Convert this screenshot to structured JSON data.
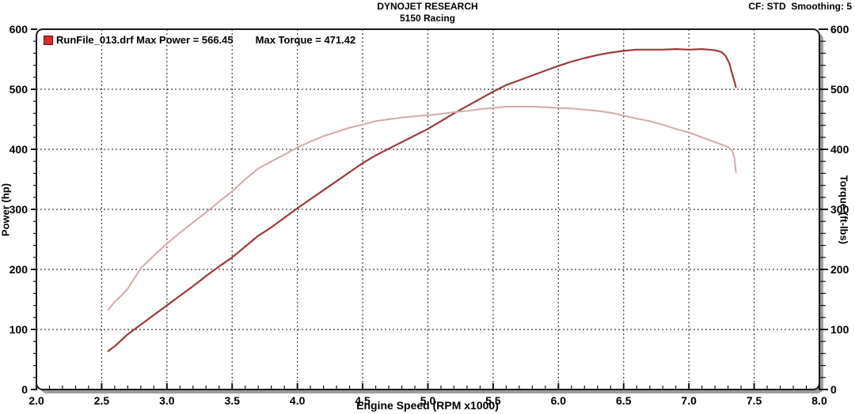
{
  "header": {
    "title": "DYNOJET RESEARCH",
    "subtitle": "5150 Racing",
    "settings": "CF: STD  Smoothing: 5"
  },
  "legend": {
    "run_label": "RunFile_013.drf Max Power = 566.45",
    "torque_label": "Max Torque = 471.42",
    "swatch_color": "#d52b2b"
  },
  "colors": {
    "power_curve": "#9c3a3a",
    "torque_curve": "#d5a9a9",
    "grid": "#3c3c3c",
    "frame": "#1a1a1a",
    "frame_shadow": "#9c9c9c"
  },
  "chart_data": {
    "type": "line",
    "title": "DYNOJET RESEARCH - 5150 Racing",
    "xlabel": "Engine Speed (RPM x1000)",
    "ylabel_left": "Power (hp)",
    "ylabel_right": "Torque (ft-lbs)",
    "xlim": [
      2.0,
      8.0
    ],
    "ylim": [
      0,
      600
    ],
    "x_major_ticks": [
      2.0,
      2.5,
      3.0,
      3.5,
      4.0,
      4.5,
      5.0,
      5.5,
      6.0,
      6.5,
      7.0,
      7.5,
      8.0
    ],
    "x_tick_labels": [
      "2.0",
      "2.5",
      "3.0",
      "3.5",
      "4.0",
      "4.5",
      "5.0",
      "5.5",
      "6.0",
      "6.5",
      "7.0",
      "7.5",
      "8.0"
    ],
    "x_minor_step": 0.1,
    "y_major_ticks": [
      0,
      100,
      200,
      300,
      400,
      500,
      600
    ],
    "y_tick_labels": [
      "0",
      "100",
      "200",
      "300",
      "400",
      "500",
      "600"
    ],
    "y_minor_step": 20,
    "grid": true,
    "legend_position": "top-left",
    "series": [
      {
        "name": "Power",
        "unit": "hp",
        "max": 566.45,
        "color": "#9c3a3a",
        "points": [
          [
            2.55,
            64
          ],
          [
            2.6,
            72
          ],
          [
            2.7,
            92
          ],
          [
            2.8,
            108
          ],
          [
            2.9,
            124
          ],
          [
            3.0,
            140
          ],
          [
            3.1,
            156
          ],
          [
            3.2,
            172
          ],
          [
            3.3,
            189
          ],
          [
            3.4,
            205
          ],
          [
            3.5,
            220
          ],
          [
            3.6,
            238
          ],
          [
            3.7,
            256
          ],
          [
            3.8,
            270
          ],
          [
            3.9,
            286
          ],
          [
            4.0,
            302
          ],
          [
            4.1,
            317
          ],
          [
            4.2,
            332
          ],
          [
            4.3,
            347
          ],
          [
            4.4,
            362
          ],
          [
            4.5,
            377
          ],
          [
            4.6,
            390
          ],
          [
            4.7,
            401
          ],
          [
            4.8,
            412
          ],
          [
            4.9,
            423
          ],
          [
            5.0,
            434
          ],
          [
            5.1,
            447
          ],
          [
            5.2,
            460
          ],
          [
            5.3,
            472
          ],
          [
            5.4,
            484
          ],
          [
            5.5,
            496
          ],
          [
            5.6,
            507
          ],
          [
            5.7,
            515
          ],
          [
            5.8,
            523
          ],
          [
            5.9,
            531
          ],
          [
            6.0,
            539
          ],
          [
            6.1,
            546
          ],
          [
            6.2,
            552
          ],
          [
            6.3,
            557
          ],
          [
            6.4,
            561
          ],
          [
            6.5,
            564
          ],
          [
            6.6,
            566
          ],
          [
            6.7,
            566
          ],
          [
            6.8,
            566
          ],
          [
            6.9,
            567
          ],
          [
            7.0,
            566
          ],
          [
            7.1,
            567
          ],
          [
            7.15,
            566
          ],
          [
            7.2,
            565
          ],
          [
            7.25,
            562
          ],
          [
            7.28,
            556
          ],
          [
            7.31,
            543
          ],
          [
            7.33,
            527
          ],
          [
            7.35,
            512
          ],
          [
            7.36,
            504
          ]
        ]
      },
      {
        "name": "Torque",
        "unit": "ft-lbs",
        "max": 471.42,
        "color": "#d5a9a9",
        "points": [
          [
            2.55,
            133
          ],
          [
            2.6,
            146
          ],
          [
            2.65,
            156
          ],
          [
            2.7,
            168
          ],
          [
            2.75,
            185
          ],
          [
            2.8,
            202
          ],
          [
            2.9,
            223
          ],
          [
            3.0,
            243
          ],
          [
            3.1,
            261
          ],
          [
            3.2,
            278
          ],
          [
            3.3,
            295
          ],
          [
            3.4,
            313
          ],
          [
            3.5,
            330
          ],
          [
            3.6,
            350
          ],
          [
            3.7,
            368
          ],
          [
            3.8,
            380
          ],
          [
            3.9,
            391
          ],
          [
            4.0,
            403
          ],
          [
            4.1,
            413
          ],
          [
            4.2,
            422
          ],
          [
            4.3,
            429
          ],
          [
            4.4,
            436
          ],
          [
            4.5,
            441
          ],
          [
            4.6,
            447
          ],
          [
            4.7,
            450
          ],
          [
            4.8,
            453
          ],
          [
            4.9,
            455
          ],
          [
            5.0,
            457
          ],
          [
            5.1,
            459
          ],
          [
            5.2,
            462
          ],
          [
            5.3,
            464
          ],
          [
            5.4,
            467
          ],
          [
            5.5,
            469
          ],
          [
            5.6,
            471
          ],
          [
            5.7,
            471
          ],
          [
            5.8,
            471
          ],
          [
            5.9,
            470
          ],
          [
            6.0,
            469
          ],
          [
            6.1,
            468
          ],
          [
            6.2,
            466
          ],
          [
            6.3,
            464
          ],
          [
            6.4,
            461
          ],
          [
            6.5,
            456
          ],
          [
            6.6,
            451
          ],
          [
            6.7,
            447
          ],
          [
            6.8,
            441
          ],
          [
            6.9,
            434
          ],
          [
            7.0,
            428
          ],
          [
            7.1,
            420
          ],
          [
            7.2,
            412
          ],
          [
            7.3,
            404
          ],
          [
            7.33,
            398
          ],
          [
            7.35,
            385
          ],
          [
            7.36,
            362
          ]
        ]
      }
    ]
  }
}
